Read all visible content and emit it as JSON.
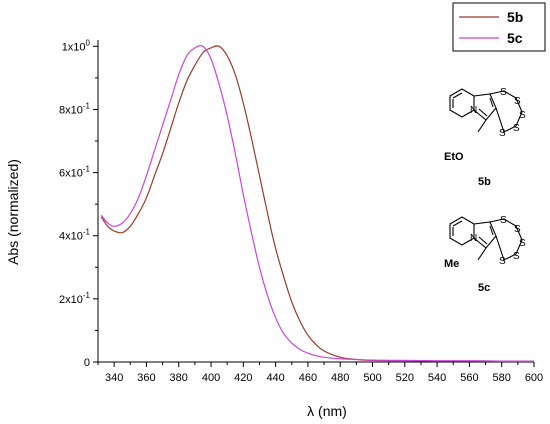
{
  "chart_data": {
    "type": "line",
    "xlabel": "λ (nm)",
    "ylabel": "Abs (normalized)",
    "xlim": [
      330,
      600
    ],
    "ylim": [
      0,
      1.02
    ],
    "x_ticks": [
      340,
      360,
      380,
      400,
      420,
      440,
      460,
      480,
      500,
      520,
      540,
      560,
      580,
      600
    ],
    "y_ticks": [
      {
        "value": 0,
        "label": "0"
      },
      {
        "value": 0.2,
        "label": "2x10",
        "exp": "-1"
      },
      {
        "value": 0.4,
        "label": "4x10",
        "exp": "-1"
      },
      {
        "value": 0.6,
        "label": "6x10",
        "exp": "-1"
      },
      {
        "value": 0.8,
        "label": "8x10",
        "exp": "-1"
      },
      {
        "value": 1.0,
        "label": "1x10",
        "exp": "0"
      }
    ],
    "legend_position": "top-right",
    "series": [
      {
        "name": "5b",
        "color": "#9b3a2a",
        "x": [
          332,
          336,
          340,
          345,
          350,
          355,
          360,
          365,
          370,
          375,
          380,
          385,
          390,
          395,
          400,
          405,
          410,
          415,
          420,
          425,
          430,
          435,
          440,
          445,
          450,
          455,
          460,
          465,
          470,
          480,
          490,
          500,
          520,
          540,
          560,
          580,
          600
        ],
        "values": [
          0.46,
          0.43,
          0.415,
          0.41,
          0.43,
          0.47,
          0.52,
          0.59,
          0.66,
          0.74,
          0.82,
          0.89,
          0.94,
          0.98,
          0.995,
          1.0,
          0.97,
          0.91,
          0.82,
          0.71,
          0.59,
          0.47,
          0.36,
          0.27,
          0.19,
          0.13,
          0.085,
          0.055,
          0.035,
          0.015,
          0.008,
          0.005,
          0.004,
          0.003,
          0.003,
          0.002,
          0.002
        ]
      },
      {
        "name": "5c",
        "color": "#cc44dd",
        "x": [
          332,
          336,
          340,
          345,
          350,
          355,
          360,
          365,
          370,
          375,
          380,
          385,
          390,
          395,
          400,
          405,
          410,
          415,
          420,
          425,
          430,
          435,
          440,
          445,
          450,
          455,
          460,
          465,
          470,
          480,
          490,
          500,
          520,
          540,
          560,
          580,
          600
        ],
        "values": [
          0.465,
          0.44,
          0.43,
          0.44,
          0.47,
          0.52,
          0.59,
          0.67,
          0.75,
          0.83,
          0.91,
          0.97,
          0.995,
          1.0,
          0.96,
          0.88,
          0.78,
          0.66,
          0.53,
          0.41,
          0.3,
          0.21,
          0.14,
          0.09,
          0.06,
          0.04,
          0.028,
          0.02,
          0.015,
          0.01,
          0.008,
          0.006,
          0.005,
          0.004,
          0.004,
          0.003,
          0.003
        ]
      }
    ]
  },
  "structures": [
    {
      "label": "5b",
      "substituent": "EtO",
      "substituent_color": "#c0392b"
    },
    {
      "label": "5c",
      "substituent": "Me",
      "substituent_color": "#c040c0"
    }
  ],
  "atoms": {
    "sulfur": "S",
    "nitrogen": "N"
  }
}
